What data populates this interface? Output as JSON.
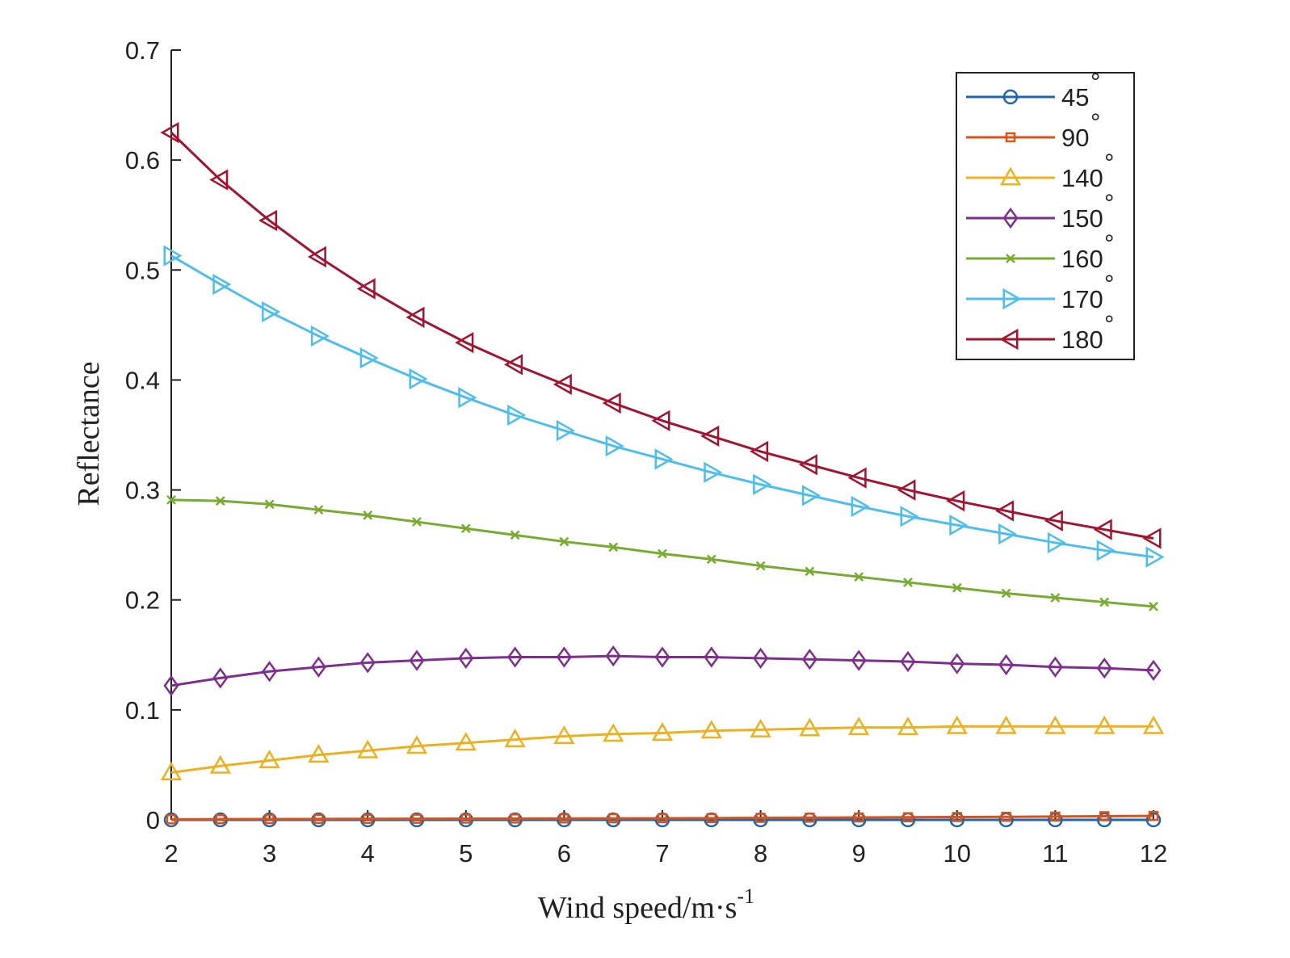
{
  "chart_data": {
    "type": "line",
    "title": "",
    "xlabel": "Wind speed/m·s",
    "xlabel_superscript": "-1",
    "ylabel": "Reflectance",
    "xlim": [
      2,
      12
    ],
    "ylim": [
      0,
      0.7
    ],
    "xticks": [
      "2",
      "3",
      "4",
      "5",
      "6",
      "7",
      "8",
      "9",
      "10",
      "11",
      "12"
    ],
    "yticks": [
      "0",
      "0.1",
      "0.2",
      "0.3",
      "0.4",
      "0.5",
      "0.6",
      "0.7"
    ],
    "grid": false,
    "legend_position": "top-right",
    "x": [
      2,
      2.5,
      3,
      3.5,
      4,
      4.5,
      5,
      5.5,
      6,
      6.5,
      7,
      7.5,
      8,
      8.5,
      9,
      9.5,
      10,
      10.5,
      11,
      11.5,
      12
    ],
    "series": [
      {
        "name": "45",
        "color": "#2166ac",
        "marker": "circle",
        "values": [
          0.0,
          0.0,
          0.0,
          0.0,
          0.0,
          0.0,
          0.0,
          0.0,
          0.0,
          0.0,
          0.0,
          0.0,
          0.0,
          0.0,
          0.0,
          0.0,
          0.0,
          0.0,
          0.0,
          0.0,
          0.0
        ]
      },
      {
        "name": "90",
        "color": "#d95319",
        "marker": "square",
        "values": [
          0.0005,
          0.0006,
          0.0007,
          0.0008,
          0.0009,
          0.001,
          0.0011,
          0.0012,
          0.0013,
          0.0014,
          0.0015,
          0.0016,
          0.0018,
          0.002,
          0.0022,
          0.0024,
          0.0026,
          0.0028,
          0.003,
          0.0033,
          0.0036
        ]
      },
      {
        "name": "140",
        "color": "#edb120",
        "marker": "triangle-up",
        "values": [
          0.043,
          0.049,
          0.054,
          0.059,
          0.063,
          0.067,
          0.07,
          0.073,
          0.076,
          0.078,
          0.079,
          0.081,
          0.082,
          0.083,
          0.084,
          0.084,
          0.085,
          0.085,
          0.085,
          0.085,
          0.085
        ]
      },
      {
        "name": "150",
        "color": "#7e2f8e",
        "marker": "diamond",
        "values": [
          0.122,
          0.129,
          0.135,
          0.139,
          0.143,
          0.145,
          0.147,
          0.148,
          0.148,
          0.149,
          0.148,
          0.148,
          0.147,
          0.146,
          0.145,
          0.144,
          0.142,
          0.141,
          0.139,
          0.138,
          0.136
        ]
      },
      {
        "name": "160",
        "color": "#77ac30",
        "marker": "x",
        "values": [
          0.291,
          0.29,
          0.287,
          0.282,
          0.277,
          0.271,
          0.265,
          0.259,
          0.253,
          0.248,
          0.242,
          0.237,
          0.231,
          0.226,
          0.221,
          0.216,
          0.211,
          0.206,
          0.202,
          0.198,
          0.194
        ]
      },
      {
        "name": "170",
        "color": "#4dbeee",
        "marker": "triangle-right",
        "values": [
          0.513,
          0.487,
          0.462,
          0.44,
          0.42,
          0.401,
          0.384,
          0.368,
          0.354,
          0.34,
          0.328,
          0.316,
          0.305,
          0.295,
          0.285,
          0.276,
          0.268,
          0.26,
          0.252,
          0.245,
          0.239
        ]
      },
      {
        "name": "180",
        "color": "#a2142f",
        "marker": "triangle-left",
        "values": [
          0.625,
          0.582,
          0.545,
          0.512,
          0.483,
          0.457,
          0.434,
          0.414,
          0.396,
          0.379,
          0.363,
          0.349,
          0.335,
          0.323,
          0.311,
          0.3,
          0.29,
          0.281,
          0.272,
          0.264,
          0.256
        ]
      }
    ]
  }
}
